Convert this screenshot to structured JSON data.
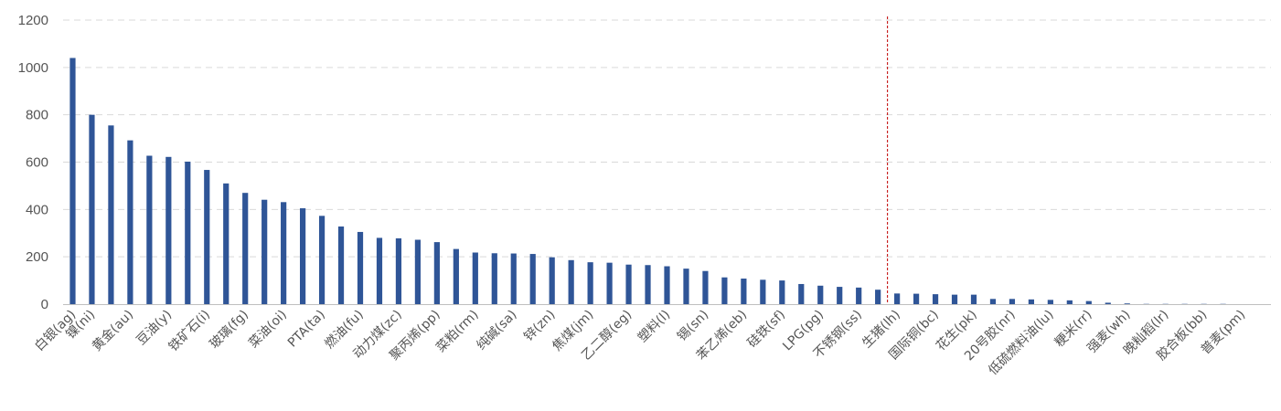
{
  "chart_data": {
    "type": "bar",
    "title": "",
    "xlabel": "",
    "ylabel": "",
    "ylim": [
      0,
      1200
    ],
    "yticks": [
      0,
      200,
      400,
      600,
      800,
      1000,
      1200
    ],
    "grid": true,
    "legend": "none",
    "bar_color": "#2f5597",
    "divider_color": "#c00000",
    "divider_after_category": "不锈钢(ss)",
    "categories": [
      "白银(ag)",
      "镍(ni)",
      "",
      "黄金(au)",
      "",
      "豆油(y)",
      "",
      "铁矿石(i)",
      "",
      "玻璃(fg)",
      "",
      "菜油(oi)",
      "",
      "PTA(ta)",
      "",
      "燃油(fu)",
      "",
      "动力煤(zc)",
      "",
      "聚丙烯(pp)",
      "",
      "菜粕(rm)",
      "",
      "纯碱(sa)",
      "",
      "锌(zn)",
      "",
      "焦煤(jm)",
      "",
      "乙二醇(eg)",
      "",
      "塑料(l)",
      "",
      "锡(sn)",
      "",
      "苯乙烯(eb)",
      "",
      "硅铁(sf)",
      "",
      "LPG(pg)",
      "",
      "不锈钢(ss)",
      "",
      "生猪(lh)",
      "",
      "国际铜(bc)",
      "",
      "花生(pk)",
      "",
      "20号胶(nr)",
      "",
      "低硫燃料油(lu)",
      "",
      "粳米(rr)",
      "",
      "强麦(wh)",
      "",
      "晚籼稻(lr)",
      "",
      "胶合板(bb)",
      "",
      "普麦(pm)",
      ""
    ],
    "values": [
      1040,
      800,
      755,
      692,
      627,
      622,
      602,
      567,
      510,
      470,
      441,
      431,
      405,
      373,
      328,
      305,
      280,
      278,
      272,
      262,
      233,
      218,
      215,
      214,
      212,
      198,
      186,
      177,
      175,
      167,
      165,
      160,
      150,
      140,
      113,
      108,
      103,
      100,
      85,
      78,
      73,
      70,
      61,
      45,
      44,
      42,
      40,
      40,
      22,
      22,
      20,
      18,
      16,
      13,
      6,
      3,
      1,
      1,
      1,
      1,
      1,
      0,
      0
    ]
  }
}
